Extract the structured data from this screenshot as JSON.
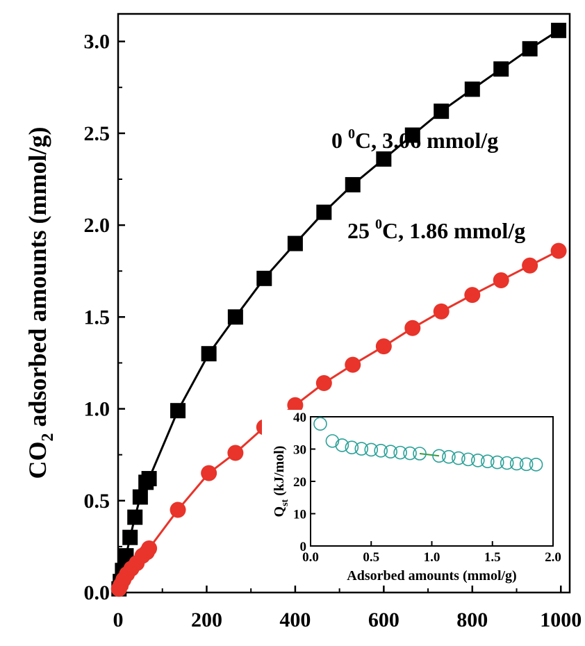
{
  "chart_data": [
    {
      "type": "scatter",
      "title": "",
      "xlabel": "",
      "ylabel": "CO₂ adsorbed amounts (mmol/g)",
      "ylabel_parts": {
        "pre": "CO",
        "sub": "2",
        "post": " adsorbed amounts (mmol/g)"
      },
      "xlim": [
        0,
        1020
      ],
      "ylim": [
        0,
        3.15
      ],
      "x_ticks": [
        0,
        200,
        400,
        600,
        800,
        1000
      ],
      "y_ticks": [
        0.0,
        0.5,
        1.0,
        1.5,
        2.0,
        2.5,
        3.0
      ],
      "x_tick_labels": [
        "0",
        "200",
        "400",
        "600",
        "800",
        "1000"
      ],
      "y_tick_labels": [
        "0.0",
        "0.5",
        "1.0",
        "1.5",
        "2.0",
        "2.5",
        "3.0"
      ],
      "grid": false,
      "series": [
        {
          "name": "0 ⁰C, 3.06 mmol/g",
          "label_parts": {
            "pre": "0 ",
            "sup": "0",
            "post": "C,  3.06 mmol/g"
          },
          "color": "#000000",
          "marker": "square",
          "x": [
            2,
            5,
            10,
            18,
            27,
            38,
            50,
            63,
            70,
            135,
            205,
            265,
            330,
            400,
            465,
            530,
            600,
            665,
            730,
            800,
            865,
            930,
            995
          ],
          "y": [
            0.02,
            0.06,
            0.12,
            0.2,
            0.3,
            0.41,
            0.52,
            0.6,
            0.62,
            0.99,
            1.3,
            1.5,
            1.71,
            1.9,
            2.07,
            2.22,
            2.36,
            2.49,
            2.62,
            2.74,
            2.85,
            2.96,
            3.06
          ]
        },
        {
          "name": "25 ⁰C, 1.86 mmol/g",
          "label_parts": {
            "pre": "25 ",
            "sup": "0",
            "post": "C, 1.86 mmol/g"
          },
          "color": "#e8342a",
          "marker": "circle",
          "x": [
            2,
            6,
            12,
            20,
            30,
            42,
            55,
            65,
            70,
            135,
            205,
            265,
            330,
            400,
            465,
            530,
            600,
            665,
            730,
            800,
            865,
            930,
            995
          ],
          "y": [
            0.02,
            0.04,
            0.07,
            0.1,
            0.13,
            0.16,
            0.2,
            0.22,
            0.24,
            0.45,
            0.65,
            0.76,
            0.9,
            1.02,
            1.14,
            1.24,
            1.34,
            1.44,
            1.53,
            1.62,
            1.7,
            1.78,
            1.86
          ]
        }
      ]
    },
    {
      "type": "scatter",
      "title": "",
      "xlabel": "Adsorbed amounts (mmol/g)",
      "ylabel": "Qst (kJ/mol)",
      "ylabel_parts": {
        "pre": "Q",
        "sub": "st",
        "post": " (kJ/mol)"
      },
      "xlim": [
        0,
        2.0
      ],
      "ylim": [
        0,
        40
      ],
      "x_ticks": [
        0.0,
        0.5,
        1.0,
        1.5,
        2.0
      ],
      "y_ticks": [
        0,
        10,
        20,
        30,
        40
      ],
      "x_tick_labels": [
        "0.0",
        "0.5",
        "1.0",
        "1.5",
        "2.0"
      ],
      "y_tick_labels": [
        "0",
        "10",
        "20",
        "30",
        "40"
      ],
      "grid": false,
      "series": [
        {
          "color": "#2aa198",
          "marker": "open-circle",
          "x": [
            0.08,
            0.18,
            0.26,
            0.34,
            0.42,
            0.5,
            0.58,
            0.66,
            0.74,
            0.82,
            0.9,
            1.06,
            1.14,
            1.22,
            1.3,
            1.38,
            1.46,
            1.54,
            1.62,
            1.7,
            1.78,
            1.86
          ],
          "y": [
            37.8,
            32.5,
            31.2,
            30.5,
            30.1,
            29.8,
            29.5,
            29.2,
            28.9,
            28.7,
            28.6,
            27.9,
            27.6,
            27.2,
            26.8,
            26.5,
            26.2,
            25.9,
            25.7,
            25.5,
            25.3,
            25.2
          ]
        }
      ]
    }
  ]
}
